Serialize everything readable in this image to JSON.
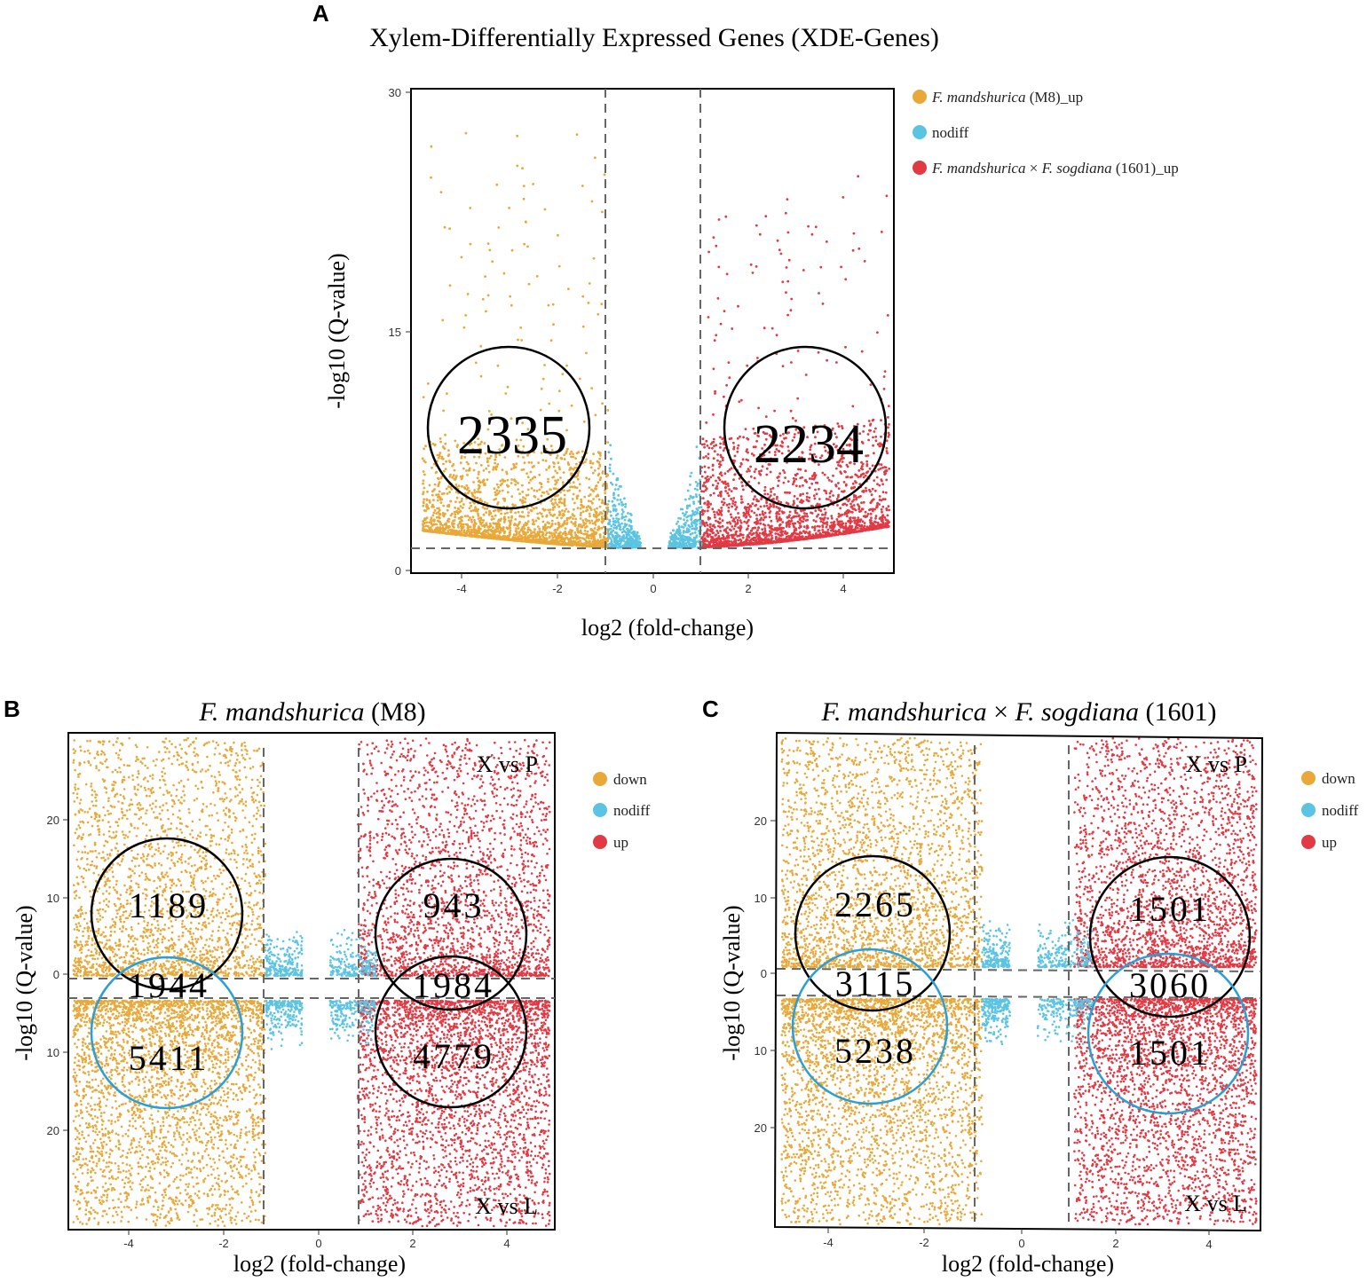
{
  "panels": {
    "A": {
      "label": "A",
      "title": "Xylem-Differentially Expressed Genes (XDE-Genes)",
      "xlabel": "log2 (fold-change)",
      "ylabel": "-log10 (Q-value)",
      "legend": [
        {
          "italic": "F. mandshurica",
          "rest": " (M8)_up",
          "color": "#e8a93a"
        },
        {
          "italic": "",
          "rest": "nodiff",
          "color": "#5bc4e2"
        },
        {
          "italic": "F. mandshurica",
          "rest": " × ",
          "italic2": "F. sogdiana",
          "rest2": " (1601)_up",
          "color": "#e23a45"
        }
      ],
      "counts": {
        "left": "2335",
        "right": "2234"
      }
    },
    "B": {
      "label": "B",
      "title_italic": "F. mandshurica",
      "title_rest": " (M8)",
      "xlabel": "log2 (fold-change)",
      "ylabel": "-log10 (Q-value)",
      "legend": [
        "down",
        "nodiff",
        "up"
      ],
      "corner_top": "X vs P",
      "corner_bottom": "X vs L",
      "counts": {
        "upper_left": "1189",
        "middle_left": "1944",
        "lower_left": "5411",
        "upper_right": "943",
        "middle_right": "1984",
        "lower_right": "4779"
      }
    },
    "C": {
      "label": "C",
      "title_italic": "F. mandshurica",
      "title_mid": " × ",
      "title_italic2": "F. sogdiana",
      "title_rest": " (1601)",
      "xlabel": "log2 (fold-change)",
      "ylabel": "-log10 (Q-value)",
      "legend": [
        "down",
        "nodiff",
        "up"
      ],
      "corner_top": "X vs P",
      "corner_bottom": "X vs L",
      "counts": {
        "upper_left": "2265",
        "middle_left": "3115",
        "lower_left": "5238",
        "upper_right": "1501",
        "middle_right": "3060",
        "lower_right": "1501"
      }
    }
  },
  "colors": {
    "down": "#e8a93a",
    "nodiff": "#5bc4e2",
    "up": "#e23a45",
    "circle_black": "#000000",
    "circle_blue": "#2a9fd6"
  },
  "chart_data": [
    {
      "type": "scatter",
      "title": "Xylem-Differentially Expressed Genes (XDE-Genes)",
      "xlabel": "log2 (fold-change)",
      "ylabel": "-log10 (Q-value)",
      "xlim": [
        -5.2,
        5.1
      ],
      "ylim": [
        -0.3,
        30.2
      ],
      "xticks": [
        -4,
        -2,
        0,
        2,
        4
      ],
      "yticks": [
        0,
        15,
        30
      ],
      "fold_change_cutoffs": [
        -1,
        1
      ],
      "q_cutoff": 1.3,
      "series": [
        {
          "name": "F. mandshurica (M8)_up",
          "count": 2335
        },
        {
          "name": "nodiff"
        },
        {
          "name": "F. mandshurica × F. sogdiana (1601)_up",
          "count": 2234
        }
      ]
    },
    {
      "type": "scatter",
      "title": "F. mandshurica (M8)",
      "xlabel": "log2 (fold-change)",
      "ylabel": "-log10 (Q-value)",
      "xlim": [
        -5.4,
        5.0
      ],
      "ylim_top": [
        2.5,
        30
      ],
      "ylim_bottom": [
        -2.5,
        -30
      ],
      "xticks": [
        -4,
        -2,
        0,
        2,
        4
      ],
      "yticks": [
        20,
        10,
        0,
        10,
        20
      ],
      "fold_change_cutoffs": [
        -1.2,
        0.8
      ],
      "series": [
        {
          "name": "down"
        },
        {
          "name": "nodiff"
        },
        {
          "name": "up"
        }
      ],
      "counts": {
        "X vs P down": 1189,
        "X vs P up": 943,
        "X vs L down": 5411,
        "X vs L up": 4779,
        "overlap down": 1944,
        "overlap up": 1984
      }
    },
    {
      "type": "scatter",
      "title": "F. mandshurica × F. sogdiana (1601)",
      "xlabel": "log2 (fold-change)",
      "ylabel": "-log10 (Q-value)",
      "xlim": [
        -5.4,
        5.0
      ],
      "ylim_top": [
        2.0,
        30
      ],
      "ylim_bottom": [
        -2.0,
        -30
      ],
      "xticks": [
        -4,
        -2,
        0,
        2,
        4
      ],
      "yticks": [
        20,
        10,
        0,
        10,
        20
      ],
      "fold_change_cutoffs": [
        -1.0,
        1.0
      ],
      "series": [
        {
          "name": "down"
        },
        {
          "name": "nodiff"
        },
        {
          "name": "up"
        }
      ],
      "counts": {
        "X vs P down": 2265,
        "X vs P up": 1501,
        "X vs L down": 5238,
        "X vs L up": 1501,
        "overlap down": 3115,
        "overlap up": 3060
      }
    }
  ]
}
